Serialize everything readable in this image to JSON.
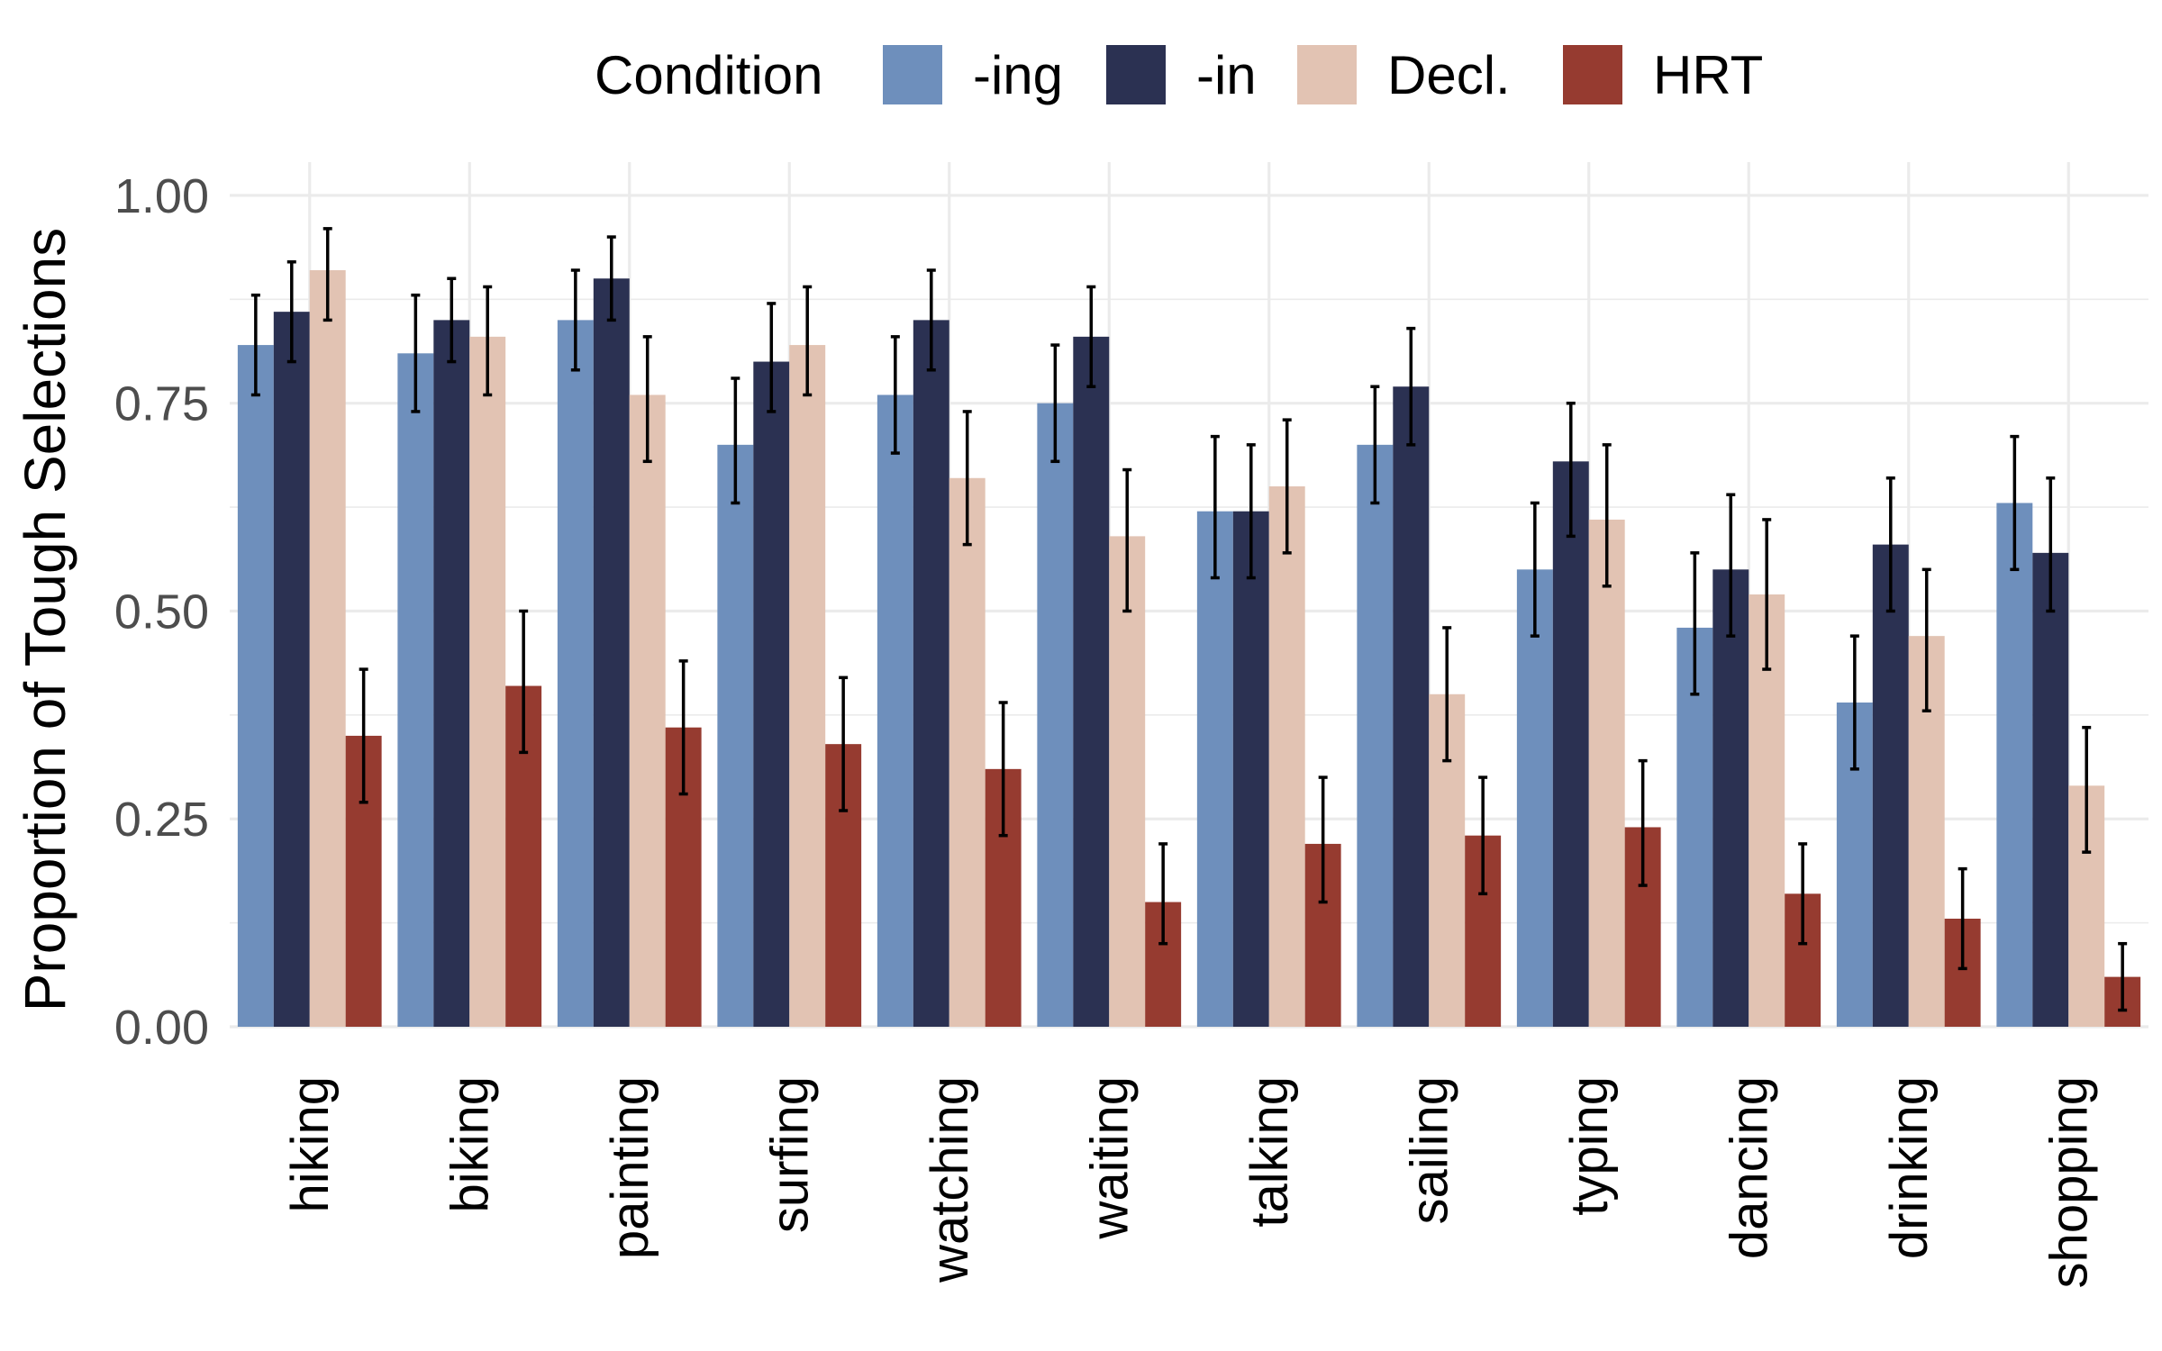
{
  "chart_data": {
    "type": "bar",
    "ylabel": "Proportion of Tough Selections",
    "xlabel": "",
    "ylim": [
      0,
      1.04
    ],
    "y_ticks": [
      "0.00",
      "0.25",
      "0.50",
      "0.75",
      "1.00"
    ],
    "y_tick_values": [
      0,
      0.25,
      0.5,
      0.75,
      1.0
    ],
    "grid": true,
    "legend": {
      "title": "Condition",
      "position": "top"
    },
    "categories": [
      "hiking",
      "biking",
      "painting",
      "surfing",
      "watching",
      "waiting",
      "talking",
      "sailing",
      "typing",
      "dancing",
      "drinking",
      "shopping"
    ],
    "series": [
      {
        "name": "-ing",
        "color": "#6e8fbc",
        "values": [
          0.82,
          0.81,
          0.85,
          0.7,
          0.76,
          0.75,
          0.62,
          0.7,
          0.55,
          0.48,
          0.39,
          0.63
        ],
        "err_low": [
          0.76,
          0.74,
          0.79,
          0.63,
          0.69,
          0.68,
          0.54,
          0.63,
          0.47,
          0.4,
          0.31,
          0.55
        ],
        "err_high": [
          0.88,
          0.88,
          0.91,
          0.78,
          0.83,
          0.82,
          0.71,
          0.77,
          0.63,
          0.57,
          0.47,
          0.71
        ]
      },
      {
        "name": "-in",
        "color": "#2b3152",
        "values": [
          0.86,
          0.85,
          0.9,
          0.8,
          0.85,
          0.83,
          0.62,
          0.77,
          0.68,
          0.55,
          0.58,
          0.57
        ],
        "err_low": [
          0.8,
          0.8,
          0.85,
          0.74,
          0.79,
          0.77,
          0.54,
          0.7,
          0.59,
          0.47,
          0.5,
          0.5
        ],
        "err_high": [
          0.92,
          0.9,
          0.95,
          0.87,
          0.91,
          0.89,
          0.7,
          0.84,
          0.75,
          0.64,
          0.66,
          0.66
        ]
      },
      {
        "name": "Decl.",
        "color": "#e2c3b3",
        "values": [
          0.91,
          0.83,
          0.76,
          0.82,
          0.66,
          0.59,
          0.65,
          0.4,
          0.61,
          0.52,
          0.47,
          0.29
        ],
        "err_low": [
          0.85,
          0.76,
          0.68,
          0.76,
          0.58,
          0.5,
          0.57,
          0.32,
          0.53,
          0.43,
          0.38,
          0.21
        ],
        "err_high": [
          0.96,
          0.89,
          0.83,
          0.89,
          0.74,
          0.67,
          0.73,
          0.48,
          0.7,
          0.61,
          0.55,
          0.36
        ]
      },
      {
        "name": "HRT",
        "color": "#963b30",
        "values": [
          0.35,
          0.41,
          0.36,
          0.34,
          0.31,
          0.15,
          0.22,
          0.23,
          0.24,
          0.16,
          0.13,
          0.06
        ],
        "err_low": [
          0.27,
          0.33,
          0.28,
          0.26,
          0.23,
          0.1,
          0.15,
          0.16,
          0.17,
          0.1,
          0.07,
          0.02
        ],
        "err_high": [
          0.43,
          0.5,
          0.44,
          0.42,
          0.39,
          0.22,
          0.3,
          0.3,
          0.32,
          0.22,
          0.19,
          0.1
        ]
      }
    ]
  }
}
